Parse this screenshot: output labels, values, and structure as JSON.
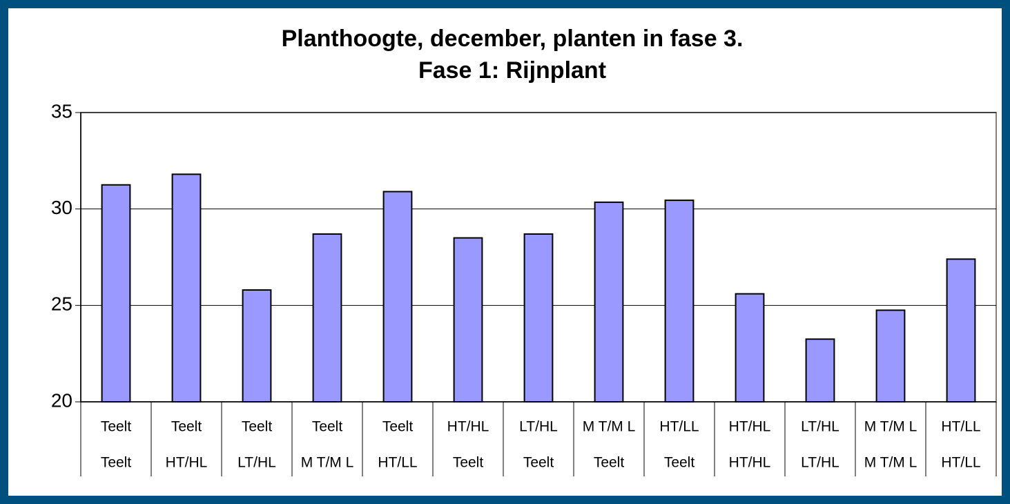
{
  "chart_data": {
    "type": "bar",
    "title": "Planthoogte, december, planten in fase 3.",
    "subtitle": "Fase 1: Rijnplant",
    "categories": [
      [
        "Teelt",
        "Teelt"
      ],
      [
        "Teelt",
        "HT/HL"
      ],
      [
        "Teelt",
        "LT/HL"
      ],
      [
        "Teelt",
        "M T/M L"
      ],
      [
        "Teelt",
        "HT/LL"
      ],
      [
        "HT/HL",
        "Teelt"
      ],
      [
        "LT/HL",
        "Teelt"
      ],
      [
        "M T/M L",
        "Teelt"
      ],
      [
        "HT/LL",
        "Teelt"
      ],
      [
        "HT/HL",
        "HT/HL"
      ],
      [
        "LT/HL",
        "LT/HL"
      ],
      [
        "M T/M L",
        "M T/M L"
      ],
      [
        "HT/LL",
        "HT/LL"
      ]
    ],
    "values": [
      31.25,
      31.8,
      25.8,
      28.7,
      30.9,
      28.5,
      28.7,
      30.35,
      30.45,
      25.6,
      23.25,
      24.75,
      27.4
    ],
    "color": "#9999ff",
    "ylim": [
      20,
      35
    ],
    "yticks": [
      20,
      25,
      30,
      35
    ],
    "grid": true
  }
}
